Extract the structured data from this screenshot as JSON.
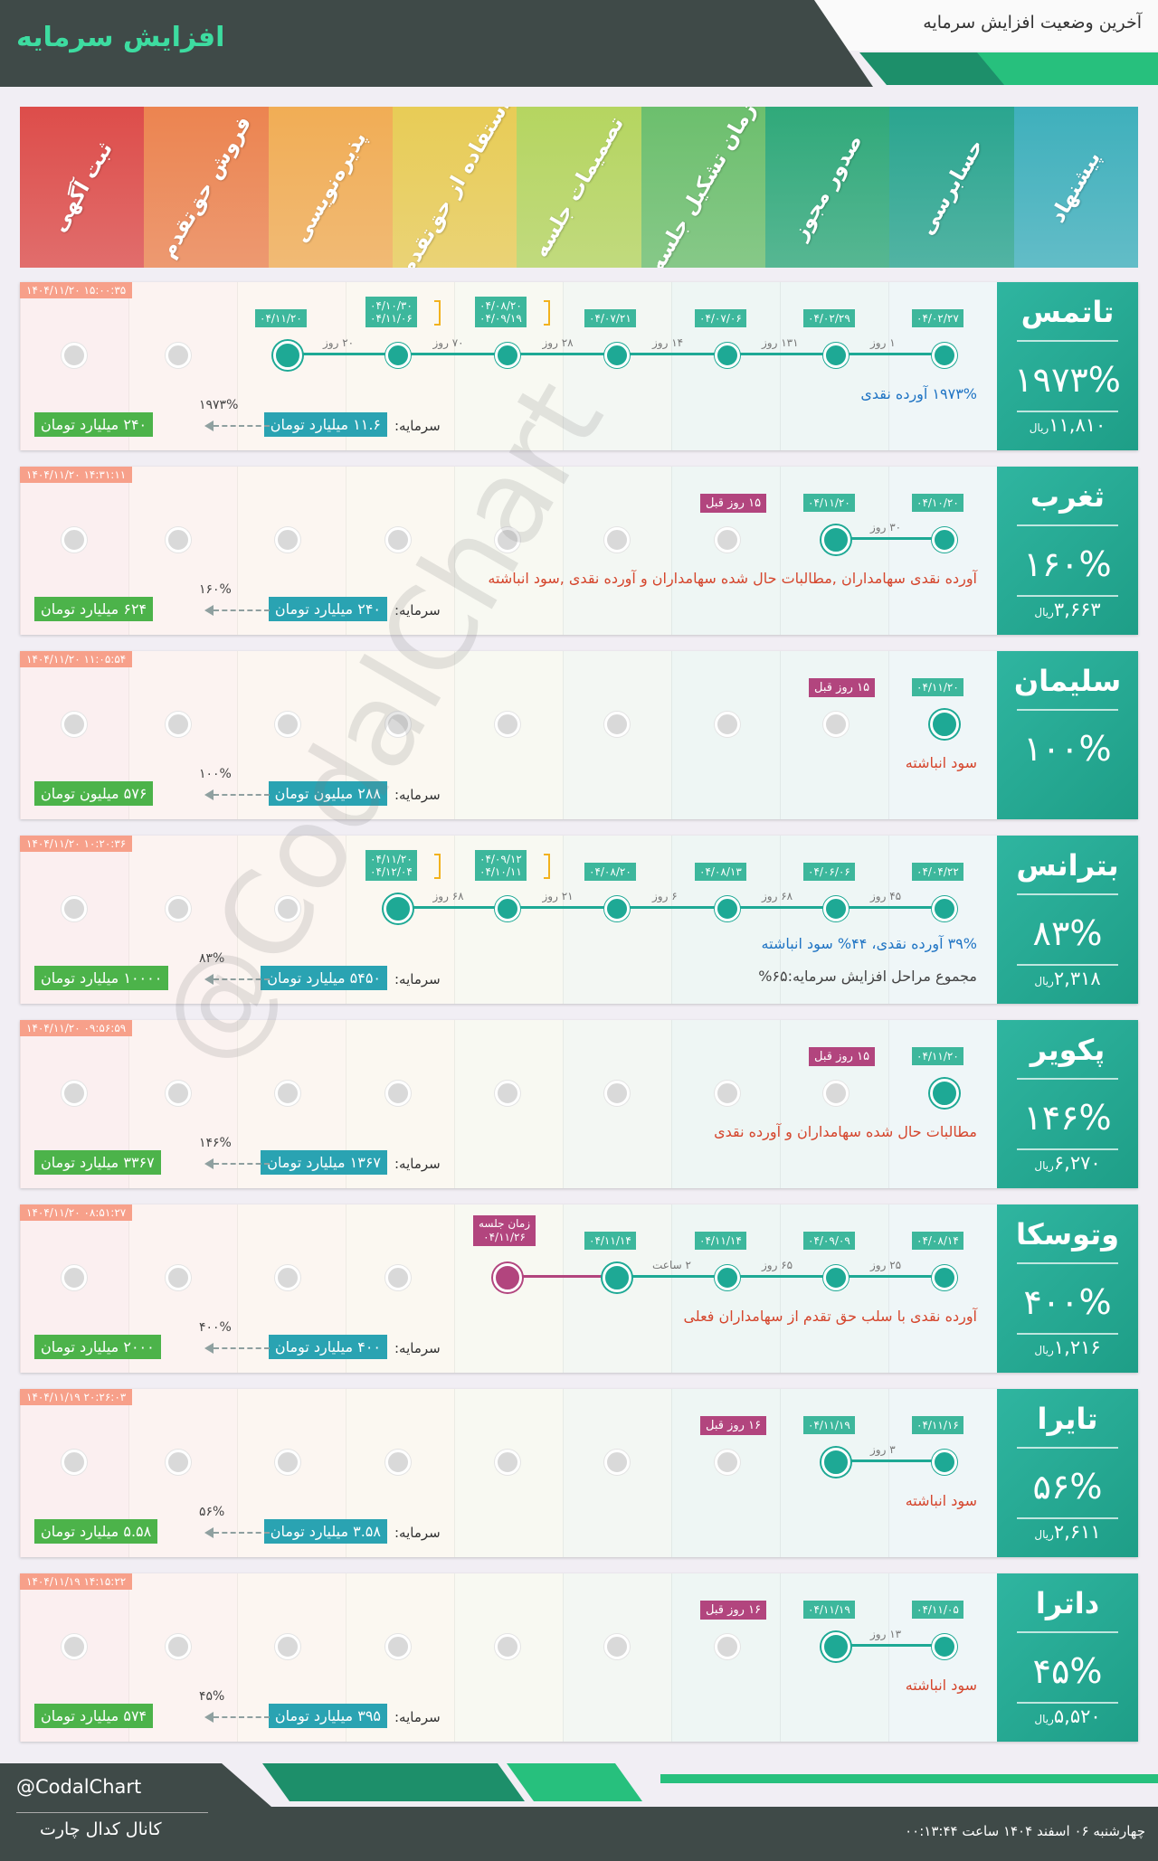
{
  "header": {
    "title": "افزایش سرمایه",
    "subtitle": "آخرین وضعیت افزایش سرمایه"
  },
  "stages": [
    "پیشنهاد",
    "حسابرسی",
    "صدور مجوز",
    "زمان تشکیل جلسه",
    "تصمیمات جلسه",
    "استفاده از حق‌تقدم",
    "پذیره‌نویسی",
    "فروش حق‌تقدم",
    "ثبت آگهی"
  ],
  "stage_colors": [
    "#3fb0bc",
    "#2aa58f",
    "#30a97a",
    "#6cbf6d",
    "#b5d560",
    "#e8cc56",
    "#f1ad55",
    "#ec8450",
    "#dd4d4a"
  ],
  "watermark": "@CodalChart",
  "capital_label": "سرمایه:",
  "cards": [
    {
      "name": "تاتمس",
      "percent": "۱۹۷۳%",
      "price": "۱۱,۸۱۰",
      "price_unit": "ریال",
      "timestamp": "۱۴۰۴/۱۱/۲۰ ۱۵:۰۰:۳۵",
      "dates": [
        "۰۴/۰۲/۲۷",
        "۰۴/۰۲/۲۹",
        "۰۴/۰۷/۰۶",
        "۰۴/۰۷/۲۱",
        "۰۴/۰۸/۲۰",
        "۰۴/۰۹/۱۹",
        "۰۴/۱۰/۳۰",
        "۰۴/۱۱/۰۶",
        "۰۴/۱۱/۲۰"
      ],
      "durations": [
        "۱ روز",
        "۱۳۱ روز",
        "۱۴ روز",
        "۲۸ روز",
        "۷۰ روز",
        "۲۰ روز"
      ],
      "description": "۱۹۷۳% آورده نقدی",
      "capital": "۱۱.۶ میلیارد تومان",
      "increase_pct": "۱۹۷۳%",
      "new_capital": "۲۴۰ میلیارد تومان"
    },
    {
      "name": "ثغرب",
      "percent": "۱۶۰%",
      "price": "۳,۶۶۳",
      "price_unit": "ریال",
      "timestamp": "۱۴۰۴/۱۱/۲۰ ۱۴:۳۱:۱۱",
      "dates": [
        "۰۴/۱۰/۲۰",
        "۰۴/۱۱/۲۰"
      ],
      "ago": "۱۵ روز قبل",
      "durations": [
        "۳۰ روز"
      ],
      "description": "آورده نقدی سهامداران ,مطالبات حال شده سهامداران و آورده نقدی ,سود انباشته",
      "capital": "۲۴۰ میلیارد تومان",
      "increase_pct": "۱۶۰%",
      "new_capital": "۶۲۴ میلیارد تومان"
    },
    {
      "name": "سلیمان",
      "percent": "۱۰۰%",
      "timestamp": "۱۴۰۴/۱۱/۲۰ ۱۱:۰۵:۵۴",
      "dates": [
        "۰۴/۱۱/۲۰"
      ],
      "ago": "۱۵ روز قبل",
      "description": "سود انباشته",
      "capital": "۲۸۸ میلیون تومان",
      "increase_pct": "۱۰۰%",
      "new_capital": "۵۷۶ میلیون تومان"
    },
    {
      "name": "بترانس",
      "percent": "۸۳%",
      "price": "۲,۳۱۸",
      "price_unit": "ریال",
      "timestamp": "۱۴۰۴/۱۱/۲۰ ۱۰:۲۰:۳۶",
      "dates": [
        "۰۴/۰۴/۲۲",
        "۰۴/۰۶/۰۶",
        "۰۴/۰۸/۱۳",
        "۰۴/۰۸/۲۰",
        "۰۴/۰۹/۱۲",
        "۰۴/۱۰/۱۱",
        "۰۴/۱۱/۲۰",
        "۰۴/۱۲/۰۴"
      ],
      "durations": [
        "۴۵ روز",
        "۶۸ روز",
        "۶ روز",
        "۲۱ روز",
        "۶۸ روز"
      ],
      "description": "۳۹% آورده نقدی، ۴۴% سود انباشته",
      "description2": "مجموع مراحل افزایش سرمایه:۶۵%",
      "capital": "۵۴۵۰ میلیارد تومان",
      "increase_pct": "۸۳%",
      "new_capital": "۱۰۰۰۰ میلیارد تومان"
    },
    {
      "name": "پکویر",
      "percent": "۱۴۶%",
      "price": "۶,۲۷۰",
      "price_unit": "ریال",
      "timestamp": "۱۴۰۴/۱۱/۲۰ ۰۹:۵۶:۵۹",
      "dates": [
        "۰۴/۱۱/۲۰"
      ],
      "ago": "۱۵ روز قبل",
      "description": "مطالبات حال شده سهامداران و آورده نقدی",
      "capital": "۱۳۶۷ میلیارد تومان",
      "increase_pct": "۱۴۶%",
      "new_capital": "۳۳۶۷ میلیارد تومان"
    },
    {
      "name": "وتوسکا",
      "percent": "۴۰۰%",
      "price": "۱,۲۱۶",
      "price_unit": "ریال",
      "timestamp": "۱۴۰۴/۱۱/۲۰ ۰۸:۵۱:۲۷",
      "dates": [
        "۰۴/۰۸/۱۴",
        "۰۴/۰۹/۰۹",
        "۰۴/۱۱/۱۴",
        "۰۴/۱۱/۱۴"
      ],
      "meeting_label": "زمان جلسه",
      "meeting_date": "۰۴/۱۱/۲۶",
      "durations": [
        "۲۵ روز",
        "۶۵ روز",
        "۲ ساعت"
      ],
      "description": "آورده نقدی با سلب حق تقدم از سهامداران فعلی",
      "capital": "۴۰۰ میلیارد تومان",
      "increase_pct": "۴۰۰%",
      "new_capital": "۲۰۰۰ میلیارد تومان"
    },
    {
      "name": "تایرا",
      "percent": "۵۶%",
      "price": "۲,۶۱۱",
      "price_unit": "ریال",
      "timestamp": "۱۴۰۴/۱۱/۱۹ ۲۰:۲۶:۰۳",
      "dates": [
        "۰۴/۱۱/۱۶",
        "۰۴/۱۱/۱۹"
      ],
      "ago": "۱۶ روز قبل",
      "durations": [
        "۳ روز"
      ],
      "description": "سود انباشته",
      "capital": "۳.۵۸ میلیارد تومان",
      "increase_pct": "۵۶%",
      "new_capital": "۵.۵۸ میلیارد تومان"
    },
    {
      "name": "داترا",
      "percent": "۴۵%",
      "price": "۵,۵۲۰",
      "price_unit": "ریال",
      "timestamp": "۱۴۰۴/۱۱/۱۹ ۱۴:۱۵:۲۲",
      "dates": [
        "۰۴/۱۱/۰۵",
        "۰۴/۱۱/۱۹"
      ],
      "ago": "۱۶ روز قبل",
      "durations": [
        "۱۳ روز"
      ],
      "description": "سود انباشته",
      "capital": "۳۹۵ میلیارد تومان",
      "increase_pct": "۴۵%",
      "new_capital": "۵۷۴ میلیارد تومان"
    }
  ],
  "footer": {
    "handle": "@CodalChart",
    "channel": "کانال کدال چارت",
    "datetime": "چهارشنبه ۰۶ اسفند ۱۴۰۴ ساعت ۰۰:۱۳:۴۴"
  }
}
